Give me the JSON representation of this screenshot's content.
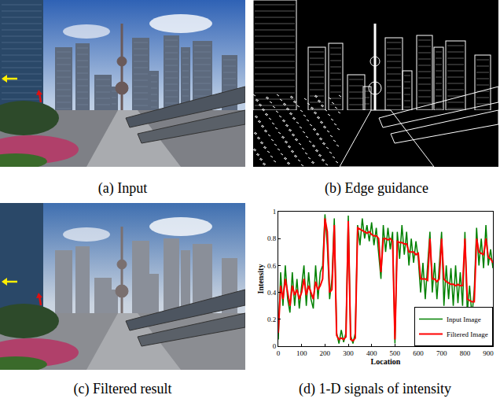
{
  "panels": [
    {
      "caption": "(a) Input"
    },
    {
      "caption": "(b) Edge guidance"
    },
    {
      "caption": "(c) Filtered result"
    },
    {
      "caption": "(d) 1-D signals of intensity"
    }
  ],
  "chart_data": {
    "type": "line",
    "xlabel": "Location",
    "ylabel": "Intensity",
    "xlim": [
      0,
      920
    ],
    "ylim": [
      0,
      1
    ],
    "xticks": [
      0,
      100,
      200,
      300,
      400,
      500,
      600,
      700,
      800,
      900
    ],
    "yticks": [
      0,
      0.2,
      0.4,
      0.6,
      0.8,
      1
    ],
    "grid": false,
    "legend": "lower right",
    "x": [
      0,
      10,
      20,
      30,
      40,
      50,
      60,
      70,
      80,
      90,
      100,
      110,
      120,
      130,
      140,
      150,
      160,
      170,
      180,
      190,
      200,
      210,
      220,
      230,
      240,
      250,
      260,
      270,
      280,
      290,
      300,
      310,
      320,
      330,
      340,
      350,
      360,
      370,
      380,
      390,
      400,
      410,
      420,
      430,
      440,
      450,
      460,
      470,
      480,
      490,
      500,
      510,
      520,
      530,
      540,
      550,
      560,
      570,
      580,
      590,
      600,
      610,
      620,
      630,
      640,
      650,
      660,
      670,
      680,
      690,
      700,
      710,
      720,
      730,
      740,
      750,
      760,
      770,
      780,
      790,
      800,
      810,
      820,
      830,
      840,
      850,
      860,
      870,
      880,
      890,
      900,
      910,
      920
    ],
    "series": [
      {
        "name": "Input Image",
        "color": "#008000",
        "values": [
          0.05,
          0.55,
          0.3,
          0.6,
          0.35,
          0.25,
          0.55,
          0.3,
          0.5,
          0.28,
          0.45,
          0.6,
          0.3,
          0.55,
          0.35,
          0.28,
          0.6,
          0.35,
          0.55,
          0.6,
          0.98,
          0.75,
          0.35,
          0.5,
          0.95,
          0.1,
          0.02,
          0.12,
          0.03,
          0.1,
          0.97,
          0.08,
          0.02,
          0.1,
          0.9,
          0.75,
          0.95,
          0.8,
          0.9,
          0.78,
          0.92,
          0.75,
          0.88,
          0.7,
          0.5,
          0.9,
          0.7,
          0.88,
          0.72,
          0.85,
          0.02,
          0.85,
          0.65,
          0.9,
          0.68,
          0.85,
          0.6,
          0.8,
          0.62,
          0.78,
          0.65,
          0.4,
          0.62,
          0.35,
          0.6,
          0.85,
          0.4,
          0.62,
          0.35,
          0.6,
          0.85,
          0.3,
          0.6,
          0.35,
          0.58,
          0.3,
          0.6,
          0.32,
          0.55,
          0.3,
          0.85,
          0.25,
          0.45,
          0.22,
          0.42,
          0.88,
          0.6,
          0.8,
          0.58,
          0.9,
          0.6,
          0.72,
          0.58
        ]
      },
      {
        "name": "Filtered Image",
        "color": "#ff0000",
        "values": [
          0.1,
          0.45,
          0.35,
          0.5,
          0.4,
          0.3,
          0.45,
          0.38,
          0.42,
          0.35,
          0.4,
          0.5,
          0.38,
          0.45,
          0.4,
          0.35,
          0.48,
          0.42,
          0.45,
          0.5,
          0.95,
          0.85,
          0.4,
          0.42,
          0.9,
          0.08,
          0.05,
          0.06,
          0.05,
          0.07,
          0.93,
          0.05,
          0.04,
          0.06,
          0.88,
          0.87,
          0.86,
          0.85,
          0.84,
          0.85,
          0.83,
          0.82,
          0.82,
          0.8,
          0.55,
          0.8,
          0.8,
          0.79,
          0.8,
          0.78,
          0.05,
          0.78,
          0.77,
          0.77,
          0.76,
          0.76,
          0.7,
          0.7,
          0.7,
          0.68,
          0.69,
          0.5,
          0.5,
          0.5,
          0.49,
          0.8,
          0.5,
          0.5,
          0.48,
          0.5,
          0.8,
          0.5,
          0.48,
          0.47,
          0.46,
          0.46,
          0.45,
          0.46,
          0.45,
          0.45,
          0.8,
          0.35,
          0.34,
          0.33,
          0.33,
          0.8,
          0.7,
          0.69,
          0.68,
          0.8,
          0.66,
          0.65,
          0.62
        ]
      }
    ]
  }
}
